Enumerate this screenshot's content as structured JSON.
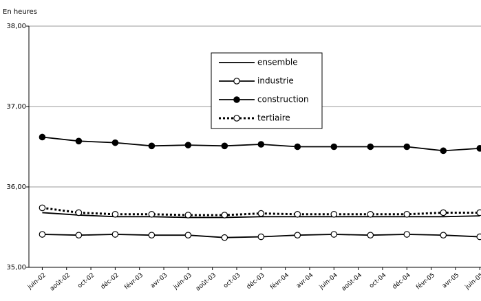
{
  "chart_data": {
    "type": "line",
    "y_label": "En heures",
    "x": [
      0,
      3,
      6,
      9,
      12,
      15,
      18,
      21,
      24,
      27,
      30,
      33,
      36
    ],
    "xlim": [
      -1.1,
      36.1
    ],
    "xticks": [
      {
        "value": 0,
        "label": "juin-02"
      },
      {
        "value": 2,
        "label": "août-02"
      },
      {
        "value": 4,
        "label": "oct-02"
      },
      {
        "value": 6,
        "label": "déc-02"
      },
      {
        "value": 8,
        "label": "févr-03"
      },
      {
        "value": 10,
        "label": "avr-03"
      },
      {
        "value": 12,
        "label": "juin-03"
      },
      {
        "value": 14,
        "label": "août-03"
      },
      {
        "value": 16,
        "label": "oct-03"
      },
      {
        "value": 18,
        "label": "déc-03"
      },
      {
        "value": 20,
        "label": "févr-04"
      },
      {
        "value": 22,
        "label": "avr-04"
      },
      {
        "value": 24,
        "label": "juin-04"
      },
      {
        "value": 26,
        "label": "août-04"
      },
      {
        "value": 28,
        "label": "oct-04"
      },
      {
        "value": 30,
        "label": "déc-04"
      },
      {
        "value": 32,
        "label": "févr-05"
      },
      {
        "value": 34,
        "label": "avr-05"
      },
      {
        "value": 36,
        "label": "juin-05"
      }
    ],
    "ylim": [
      35,
      38
    ],
    "yticks": [
      {
        "value": 35,
        "label": "35,00"
      },
      {
        "value": 36,
        "label": "36,00"
      },
      {
        "value": 37,
        "label": "37,00"
      },
      {
        "value": 38,
        "label": "38,00"
      }
    ],
    "grid": true,
    "series": [
      {
        "name": "ensemble",
        "color": "#000000",
        "marker": "none",
        "dash": false,
        "values": [
          35.68,
          35.65,
          35.63,
          35.63,
          35.62,
          35.62,
          35.63,
          35.63,
          35.63,
          35.63,
          35.63,
          35.63,
          35.64
        ]
      },
      {
        "name": "industrie",
        "color": "#000000",
        "marker": "open",
        "dash": false,
        "values": [
          35.41,
          35.4,
          35.41,
          35.4,
          35.4,
          35.37,
          35.38,
          35.4,
          35.41,
          35.4,
          35.41,
          35.4,
          35.38
        ]
      },
      {
        "name": "construction",
        "color": "#000000",
        "marker": "filled",
        "dash": false,
        "values": [
          36.62,
          36.57,
          36.55,
          36.51,
          36.52,
          36.51,
          36.53,
          36.5,
          36.5,
          36.5,
          36.5,
          36.45,
          36.48
        ]
      },
      {
        "name": "tertiaire",
        "color": "#000000",
        "marker": "open",
        "dash": true,
        "values": [
          35.74,
          35.68,
          35.66,
          35.66,
          35.65,
          35.65,
          35.67,
          35.66,
          35.66,
          35.66,
          35.66,
          35.68,
          35.68
        ]
      }
    ]
  }
}
